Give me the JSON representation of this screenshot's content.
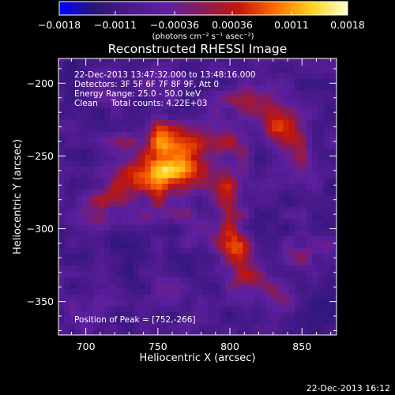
{
  "chart_data": {
    "type": "heatmap",
    "title": "Reconstructed RHESSI Image",
    "xlabel": "Heliocentric X (arcsec)",
    "ylabel": "Heliocentric Y (arcsec)",
    "xlim": [
      681,
      874
    ],
    "ylim": [
      -373,
      -183
    ],
    "x_ticks": [
      700,
      750,
      800,
      850
    ],
    "y_ticks": [
      -200,
      -250,
      -300,
      -350
    ],
    "grid": false,
    "colorbar": {
      "orientation": "horizontal",
      "placement": "top",
      "min": -0.0018,
      "max": 0.0018,
      "ticks": [
        -0.0018,
        -0.0011,
        -0.00036,
        0.00036,
        0.0011,
        0.0018
      ],
      "tick_labels": [
        "-0.0018",
        "-0.0011",
        "-0.00036",
        "0.00036",
        "0.0011",
        "0.0018"
      ],
      "units_text": "(photons cm⁻² s⁻¹ asec⁻²)",
      "colormap": [
        "#0000ff",
        "#2a1870",
        "#4c1a8c",
        "#5e20a0",
        "#8a1c55",
        "#c41508",
        "#ff6d00",
        "#ffd21f",
        "#ffffcf"
      ]
    },
    "annotations": [
      "22-Dec-2013 13:47:32.000 to 13:48:16.000",
      "Detectors: 3F 5F 6F 7F 8F 9F, Att 0",
      "Energy Range: 25.0 - 50.0 keV",
      "Clean     Total counts: 4.22E+03",
      "Position of Peak = [752,-266]"
    ],
    "peak": {
      "x": 752,
      "y": -266
    },
    "emission_sources": [
      {
        "x": 757,
        "y": -260,
        "sx": 13,
        "sy": 15,
        "amplitude": 0.00185
      },
      {
        "x": 752,
        "y": -238,
        "sx": 9,
        "sy": 9,
        "amplitude": 0.0009
      },
      {
        "x": 773,
        "y": -243,
        "sx": 12,
        "sy": 13,
        "amplitude": 0.0009
      },
      {
        "x": 733,
        "y": -262,
        "sx": 12,
        "sy": 7,
        "amplitude": 0.0009
      },
      {
        "x": 717,
        "y": -278,
        "sx": 14,
        "sy": 8,
        "amplitude": 0.0009
      },
      {
        "x": 720,
        "y": -296,
        "sx": 18,
        "sy": 5,
        "amplitude": 0.0007
      },
      {
        "x": 795,
        "y": -275,
        "sx": 9,
        "sy": 16,
        "amplitude": 0.001
      },
      {
        "x": 804,
        "y": -314,
        "sx": 9,
        "sy": 11,
        "amplitude": 0.00155
      },
      {
        "x": 812,
        "y": -337,
        "sx": 9,
        "sy": 6,
        "amplitude": 0.0008
      },
      {
        "x": 815,
        "y": -212,
        "sx": 14,
        "sy": 10,
        "amplitude": 0.0012
      },
      {
        "x": 838,
        "y": -233,
        "sx": 14,
        "sy": 12,
        "amplitude": 0.0011
      },
      {
        "x": 850,
        "y": -258,
        "sx": 10,
        "sy": 9,
        "amplitude": 0.0008
      },
      {
        "x": 800,
        "y": -242,
        "sx": 10,
        "sy": 9,
        "amplitude": 0.0007
      },
      {
        "x": 748,
        "y": -202,
        "sx": 10,
        "sy": 7,
        "amplitude": 0.0007
      },
      {
        "x": 710,
        "y": -200,
        "sx": 10,
        "sy": 8,
        "amplitude": 0.0006
      },
      {
        "x": 855,
        "y": -315,
        "sx": 10,
        "sy": 12,
        "amplitude": 0.0007
      },
      {
        "x": 762,
        "y": -338,
        "sx": 8,
        "sy": 7,
        "amplitude": 0.0006
      },
      {
        "x": 833,
        "y": -348,
        "sx": 12,
        "sy": 12,
        "amplitude": 0.0006
      },
      {
        "x": 700,
        "y": -360,
        "sx": 12,
        "sy": 10,
        "amplitude": 0.0005
      },
      {
        "x": 775,
        "y": -300,
        "sx": 8,
        "sy": 8,
        "amplitude": 0.0005
      },
      {
        "x": 722,
        "y": -240,
        "sx": 8,
        "sy": 8,
        "amplitude": 0.0006
      }
    ],
    "background_level": -0.0009,
    "noise_amplitude": 0.00045,
    "pixel_size_arcsec": 4
  },
  "footer": {
    "timestamp": "22-Dec-2013 16:12"
  }
}
